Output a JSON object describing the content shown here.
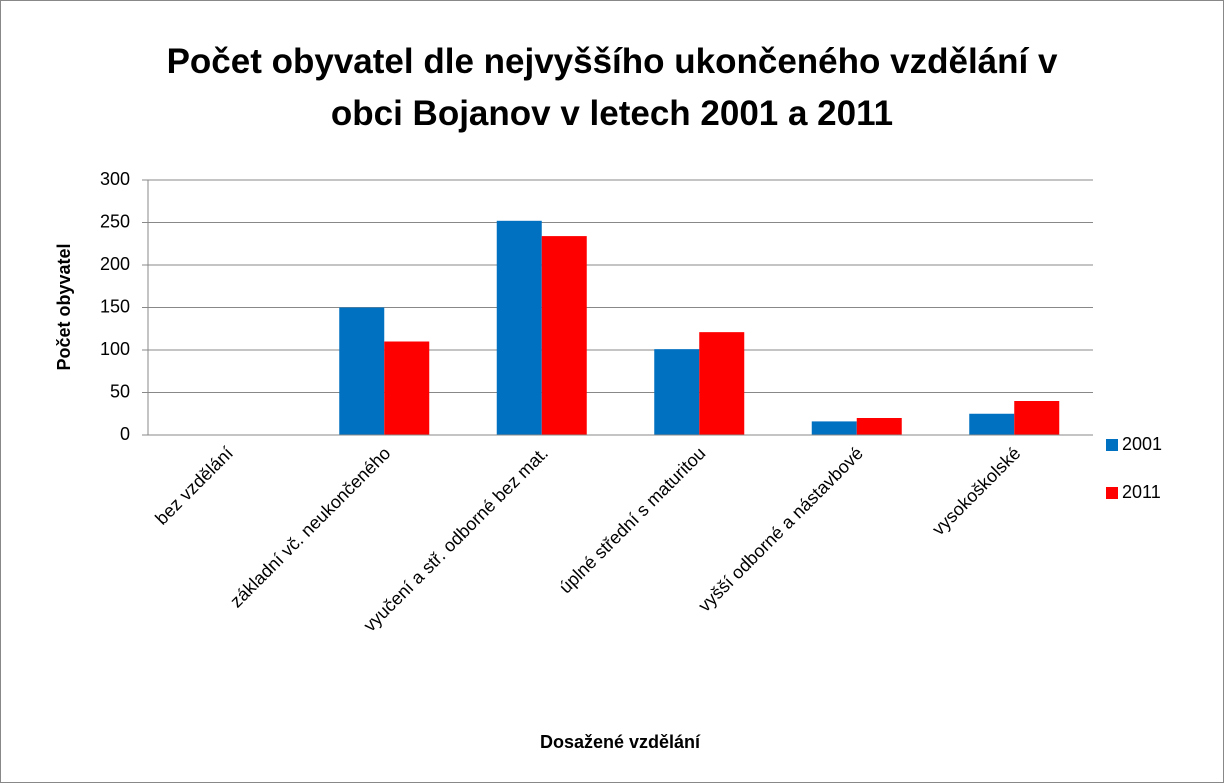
{
  "chart_data": {
    "type": "bar",
    "title": "Počet obyvatel dle nejvyššího ukončeného vzdělání v obci Bojanov v letech 2001 a 2011",
    "x_label": "Dosažené vzdělání",
    "y_label": "Počet obyvatel",
    "categories": [
      "bez vzdělání",
      "základní vč. neukončeného",
      "vyučení a stř. odborné bez mat.",
      "úplné střední s maturitou",
      "vyšší odborné a nástavbové",
      "vysokoškolské"
    ],
    "series": [
      {
        "name": "2001",
        "color": "#0070c0",
        "values": [
          0,
          150,
          252,
          101,
          16,
          25
        ]
      },
      {
        "name": "2011",
        "color": "#ff0000",
        "values": [
          0,
          110,
          234,
          121,
          20,
          40
        ]
      }
    ],
    "ylim": [
      0,
      300
    ],
    "yticks": [
      0,
      50,
      100,
      150,
      200,
      250,
      300
    ],
    "grid": true,
    "legend": "right"
  }
}
